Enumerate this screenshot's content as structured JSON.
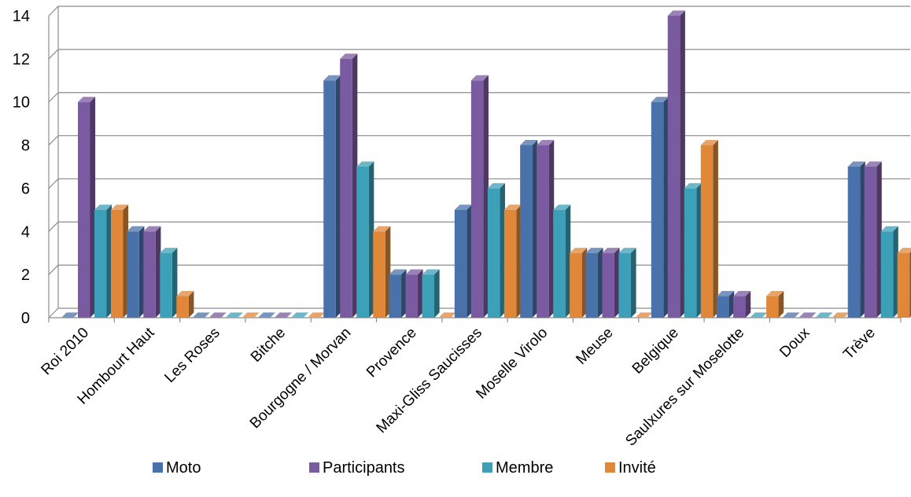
{
  "chart_data": {
    "type": "bar",
    "style": "3d-clustered-column",
    "categories": [
      "Roi 2010",
      "Hombourt Haut",
      "Les Roses",
      "Bitche",
      "Bourgogne / Morvan",
      "Provence",
      "Maxi-Gliss Saucisses",
      "Moselle Virolo",
      "Meuse",
      "Belgique",
      "Saulxures sur Moselotte",
      "Doux",
      "Trève"
    ],
    "series": [
      {
        "name": "Moto",
        "color": "#4a72aa",
        "values": [
          0,
          4,
          0,
          0,
          11,
          2,
          5,
          8,
          3,
          10,
          1,
          0,
          7
        ]
      },
      {
        "name": "Participants",
        "color": "#7a5aa0",
        "values": [
          10,
          4,
          0,
          0,
          12,
          2,
          11,
          8,
          3,
          14,
          1,
          0,
          7
        ]
      },
      {
        "name": "Membre",
        "color": "#3ba0b8",
        "values": [
          5,
          3,
          0,
          0,
          7,
          2,
          6,
          5,
          3,
          6,
          0,
          0,
          4
        ]
      },
      {
        "name": "Invité",
        "color": "#e0873a",
        "values": [
          5,
          1,
          0,
          0,
          4,
          0,
          5,
          3,
          0,
          8,
          1,
          0,
          3
        ]
      }
    ],
    "ylim": [
      0,
      14
    ],
    "yticks": [
      0,
      2,
      4,
      6,
      8,
      10,
      12,
      14
    ],
    "grid": true,
    "legend": "bottom"
  }
}
